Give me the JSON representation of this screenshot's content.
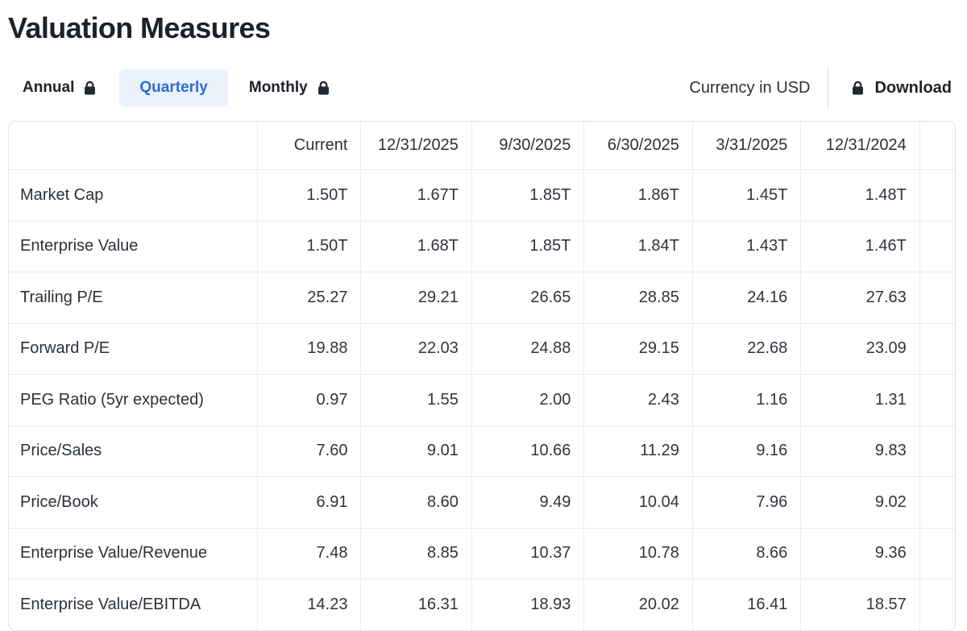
{
  "page": {
    "title": "Valuation Measures"
  },
  "toolbar": {
    "tabs": [
      {
        "label": "Annual",
        "locked": true,
        "active": false
      },
      {
        "label": "Quarterly",
        "locked": false,
        "active": true
      },
      {
        "label": "Monthly",
        "locked": true,
        "active": false
      }
    ],
    "currency_label": "Currency in USD",
    "download_label": "Download"
  },
  "table": {
    "columns": [
      "",
      "Current",
      "12/31/2025",
      "9/30/2025",
      "6/30/2025",
      "3/31/2025",
      "12/31/2024"
    ],
    "rows": [
      {
        "label": "Market Cap",
        "values": [
          "1.50T",
          "1.67T",
          "1.85T",
          "1.86T",
          "1.45T",
          "1.48T"
        ]
      },
      {
        "label": "Enterprise Value",
        "values": [
          "1.50T",
          "1.68T",
          "1.85T",
          "1.84T",
          "1.43T",
          "1.46T"
        ]
      },
      {
        "label": "Trailing P/E",
        "values": [
          "25.27",
          "29.21",
          "26.65",
          "28.85",
          "24.16",
          "27.63"
        ]
      },
      {
        "label": "Forward P/E",
        "values": [
          "19.88",
          "22.03",
          "24.88",
          "29.15",
          "22.68",
          "23.09"
        ]
      },
      {
        "label": "PEG Ratio (5yr expected)",
        "values": [
          "0.97",
          "1.55",
          "2.00",
          "2.43",
          "1.16",
          "1.31"
        ]
      },
      {
        "label": "Price/Sales",
        "values": [
          "7.60",
          "9.01",
          "10.66",
          "11.29",
          "9.16",
          "9.83"
        ]
      },
      {
        "label": "Price/Book",
        "values": [
          "6.91",
          "8.60",
          "9.49",
          "10.04",
          "7.96",
          "9.02"
        ]
      },
      {
        "label": "Enterprise Value/Revenue",
        "values": [
          "7.48",
          "8.85",
          "10.37",
          "10.78",
          "8.66",
          "9.36"
        ]
      },
      {
        "label": "Enterprise Value/EBITDA",
        "values": [
          "14.23",
          "16.31",
          "18.93",
          "20.02",
          "16.41",
          "18.57"
        ]
      }
    ]
  },
  "colors": {
    "accent_blue": "#2d6bd9",
    "active_tab_bg": "#ebf2fc",
    "title_text": "#1d2228",
    "body_text": "#30353b",
    "table_border": "#dfe2e6",
    "grid_line": "#e9ebee",
    "icon": "#23272f"
  }
}
